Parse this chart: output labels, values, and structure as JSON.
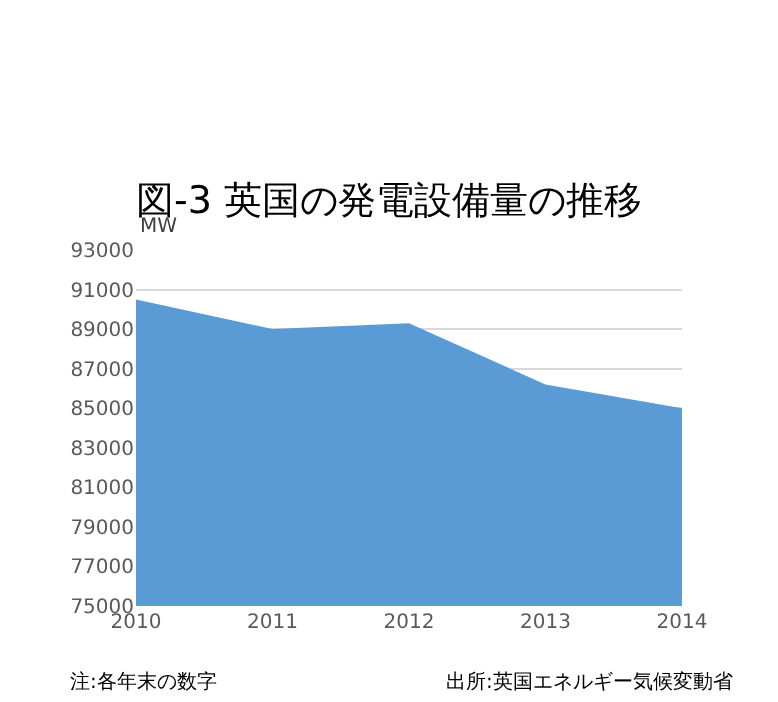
{
  "chart_data": {
    "type": "area",
    "title": "図-3 英国の発電設備量の推移",
    "ylabel": "MW",
    "x": [
      2010,
      2011,
      2012,
      2013,
      2014
    ],
    "series": [
      {
        "color": "#5b9bd5",
        "values": [
          90500,
          89000,
          89300,
          86200,
          85000
        ]
      }
    ],
    "xlim": [
      2010,
      2014
    ],
    "xticks": [
      2010,
      2011,
      2012,
      2013,
      2014
    ],
    "ylim": [
      75000,
      93000
    ],
    "yticks": [
      75000,
      77000,
      79000,
      81000,
      83000,
      85000,
      87000,
      89000,
      91000,
      93000
    ],
    "grid": "y",
    "legend": false,
    "annotations": [
      "注:各年末の数字",
      "出所:英国エネルギー気候変動省"
    ]
  }
}
